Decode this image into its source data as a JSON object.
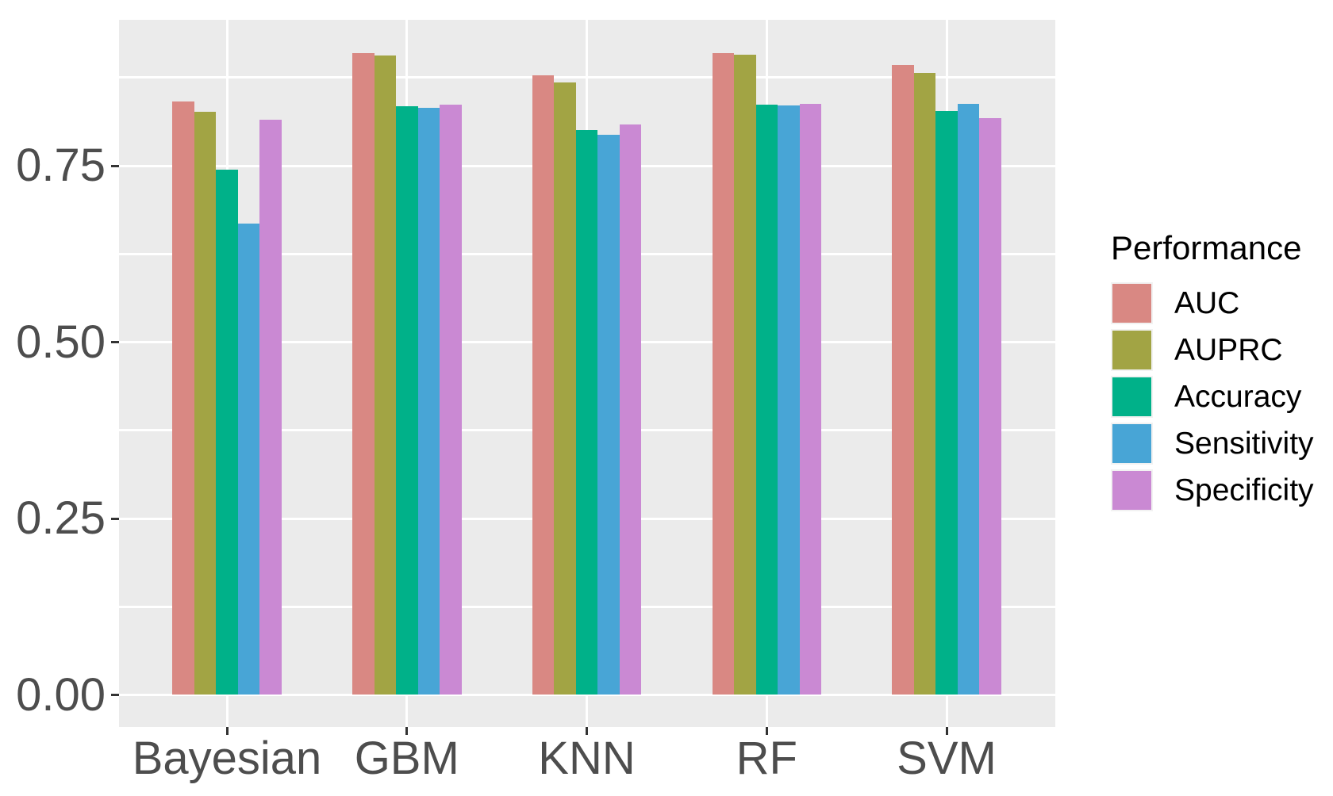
{
  "chart_data": {
    "type": "bar",
    "title": "",
    "xlabel": "",
    "ylabel": "",
    "categories": [
      "Bayesian",
      "GBM",
      "KNN",
      "RF",
      "SVM"
    ],
    "series": [
      {
        "name": "AUC",
        "color": "#D98883",
        "values": [
          0.841,
          0.91,
          0.878,
          0.91,
          0.893
        ]
      },
      {
        "name": "AUPRC",
        "color": "#A2A444",
        "values": [
          0.826,
          0.906,
          0.868,
          0.907,
          0.882
        ]
      },
      {
        "name": "Accuracy",
        "color": "#00B189",
        "values": [
          0.744,
          0.834,
          0.801,
          0.837,
          0.827
        ]
      },
      {
        "name": "Sensitivity",
        "color": "#48A5D6",
        "values": [
          0.668,
          0.832,
          0.794,
          0.835,
          0.838
        ]
      },
      {
        "name": "Specificity",
        "color": "#CA89D3",
        "values": [
          0.815,
          0.836,
          0.808,
          0.838,
          0.817
        ]
      }
    ],
    "legend": {
      "title": "Performance",
      "position": "right"
    },
    "y_axis": {
      "ticks": [
        0,
        0.25,
        0.5,
        0.75
      ],
      "tick_labels": [
        "0.00",
        "0.25",
        "0.50",
        "0.75"
      ],
      "minor_ticks": [
        0.125,
        0.375,
        0.625,
        0.875
      ],
      "lim": [
        -0.046,
        0.957
      ]
    },
    "grid": {
      "horizontal": "major+minor",
      "vertical": "major-at-categories",
      "color": "#FFFFFF"
    },
    "colors": {
      "panel_background": "#EBEBEB",
      "gridline": "#FFFFFF",
      "axis_text": "#4D4D4D",
      "tick_mark": "#333333",
      "legend_text": "#000000"
    }
  }
}
